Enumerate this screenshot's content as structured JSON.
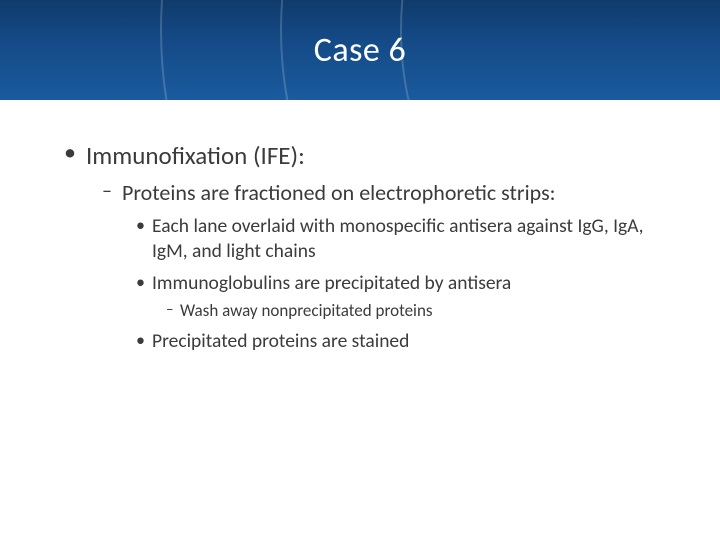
{
  "slide": {
    "title": "Case 6",
    "title_band": {
      "gradient_top": "#0f3a6b",
      "gradient_mid": "#144a86",
      "gradient_bottom": "#1a5a9e",
      "arc_color": "rgba(255,255,255,0.18)",
      "title_color": "#ffffff",
      "title_fontsize_pt": 26
    },
    "body_background": "#ffffff",
    "text_color": "#3b3b3b",
    "font_family": "Calibri",
    "bullets": {
      "lvl1_glyph": "•",
      "lvl2_glyph": "–",
      "lvl3_glyph": "•",
      "lvl4_glyph": "–",
      "lvl1_fontsize_pt": 19,
      "lvl2_fontsize_pt": 17,
      "lvl3_fontsize_pt": 15,
      "lvl4_fontsize_pt": 13
    },
    "content": {
      "l1_0": "Immunofixation (IFE):",
      "l2_0": "Proteins are fractioned on electrophoretic strips:",
      "l3_0": "Each lane overlaid with monospecific antisera against IgG, IgA, IgM, and light chains",
      "l3_1": "Immunoglobulins are precipitated by antisera",
      "l4_0": "Wash away nonprecipitated proteins",
      "l3_2": "Precipitated proteins are stained"
    }
  }
}
